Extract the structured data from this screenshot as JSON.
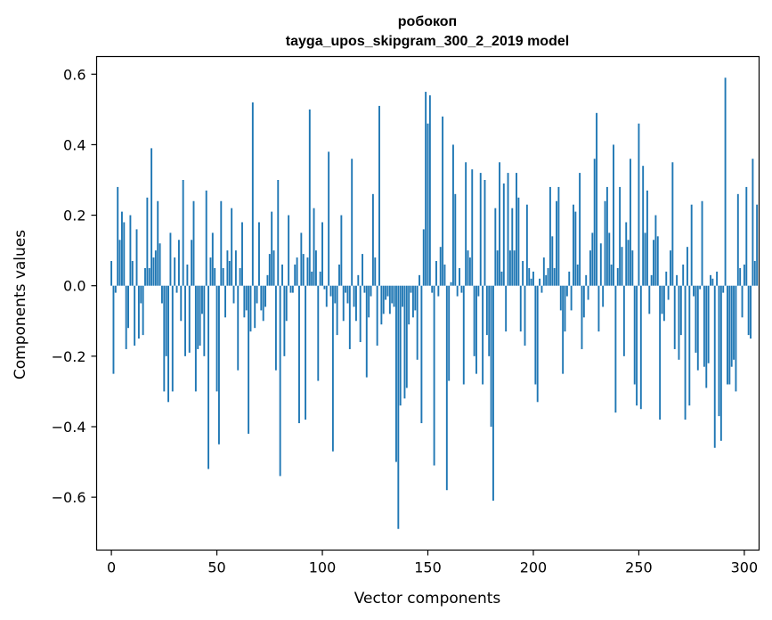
{
  "chart_data": {
    "type": "bar",
    "title": "робокоп",
    "subtitle": "tayga_upos_skipgram_300_2_2019 model",
    "xlabel": "Vector components",
    "ylabel": "Components values",
    "xlim": [
      -7,
      307
    ],
    "ylim": [
      -0.75,
      0.65
    ],
    "xticks": [
      0,
      50,
      100,
      150,
      200,
      250,
      300
    ],
    "yticks": [
      0.6,
      0.4,
      0.2,
      0.0,
      -0.2,
      -0.4,
      -0.6
    ],
    "ytick_labels": [
      "0.6",
      "0.4",
      "0.2",
      "0.0",
      "−0.2",
      "−0.4",
      "−0.6"
    ],
    "grid": false,
    "bar_color": "#1f77b4",
    "values": [
      0.07,
      -0.25,
      -0.02,
      0.28,
      0.13,
      0.21,
      0.18,
      -0.18,
      -0.12,
      0.2,
      0.07,
      -0.17,
      0.16,
      -0.15,
      -0.05,
      -0.14,
      0.05,
      0.25,
      0.05,
      0.39,
      0.08,
      0.1,
      0.24,
      0.12,
      -0.05,
      -0.3,
      -0.2,
      -0.33,
      0.15,
      -0.3,
      0.08,
      -0.02,
      0.13,
      -0.1,
      0.3,
      -0.2,
      0.06,
      -0.19,
      0.13,
      0.24,
      -0.3,
      -0.18,
      -0.17,
      -0.08,
      -0.2,
      0.27,
      -0.52,
      0.08,
      0.15,
      0.05,
      -0.3,
      -0.45,
      0.24,
      0.05,
      -0.09,
      0.1,
      0.07,
      0.22,
      -0.05,
      0.1,
      -0.24,
      0.05,
      0.18,
      -0.09,
      -0.07,
      -0.42,
      -0.13,
      0.52,
      -0.12,
      -0.05,
      0.18,
      -0.07,
      -0.1,
      -0.06,
      0.03,
      0.09,
      0.21,
      0.1,
      -0.24,
      0.3,
      -0.54,
      0.06,
      -0.2,
      -0.1,
      0.2,
      -0.02,
      -0.02,
      0.06,
      0.08,
      -0.39,
      0.15,
      0.09,
      -0.38,
      0.08,
      0.5,
      0.04,
      0.22,
      0.1,
      -0.27,
      0.04,
      0.18,
      -0.01,
      -0.06,
      0.38,
      -0.03,
      -0.47,
      -0.05,
      -0.14,
      0.06,
      0.2,
      -0.1,
      -0.02,
      -0.05,
      -0.18,
      0.36,
      -0.06,
      -0.1,
      0.03,
      -0.16,
      0.09,
      -0.02,
      -0.26,
      -0.09,
      -0.03,
      0.26,
      0.08,
      -0.17,
      0.51,
      -0.11,
      -0.08,
      -0.04,
      -0.03,
      -0.08,
      -0.05,
      -0.06,
      -0.5,
      -0.69,
      -0.34,
      -0.06,
      -0.32,
      -0.29,
      -0.11,
      -0.02,
      -0.09,
      -0.07,
      -0.21,
      0.03,
      -0.39,
      0.16,
      0.55,
      0.46,
      0.54,
      -0.02,
      -0.51,
      0.07,
      -0.03,
      0.11,
      0.48,
      0.06,
      -0.58,
      -0.27,
      0.01,
      0.4,
      0.26,
      -0.03,
      0.05,
      -0.02,
      -0.28,
      0.35,
      0.1,
      0.08,
      0.33,
      -0.2,
      -0.25,
      -0.03,
      0.32,
      -0.28,
      0.3,
      -0.14,
      -0.2,
      -0.4,
      -0.61,
      0.22,
      0.1,
      0.35,
      0.04,
      0.29,
      -0.13,
      0.32,
      0.1,
      0.22,
      0.1,
      0.32,
      0.25,
      -0.13,
      0.07,
      -0.17,
      0.23,
      0.05,
      0.02,
      0.04,
      -0.28,
      -0.33,
      0.02,
      -0.02,
      0.08,
      0.03,
      0.05,
      0.28,
      0.14,
      0.05,
      0.24,
      0.28,
      -0.07,
      -0.25,
      -0.13,
      -0.03,
      0.04,
      -0.07,
      0.23,
      0.21,
      0.06,
      0.32,
      -0.18,
      -0.09,
      0.03,
      -0.04,
      0.1,
      0.15,
      0.36,
      0.49,
      -0.13,
      0.12,
      -0.06,
      0.24,
      0.28,
      0.15,
      0.06,
      0.4,
      -0.36,
      0.05,
      0.28,
      0.11,
      -0.2,
      0.18,
      0.13,
      0.36,
      0.1,
      -0.28,
      -0.34,
      0.46,
      -0.35,
      0.34,
      0.15,
      0.27,
      -0.08,
      0.03,
      0.13,
      0.2,
      0.14,
      -0.38,
      -0.08,
      -0.1,
      0.04,
      -0.04,
      0.1,
      0.35,
      -0.18,
      0.03,
      -0.21,
      -0.14,
      0.06,
      -0.38,
      0.11,
      -0.34,
      0.23,
      -0.03,
      -0.19,
      -0.24,
      -0.01,
      0.24,
      -0.23,
      -0.29,
      -0.22,
      0.03,
      0.02,
      -0.46,
      0.04,
      -0.37,
      -0.44,
      -0.02,
      0.59,
      -0.28,
      -0.28,
      -0.23,
      -0.21,
      -0.3,
      0.26,
      0.05,
      -0.09,
      0.06,
      0.28,
      -0.14,
      -0.15,
      0.36,
      0.07,
      0.23
    ]
  }
}
